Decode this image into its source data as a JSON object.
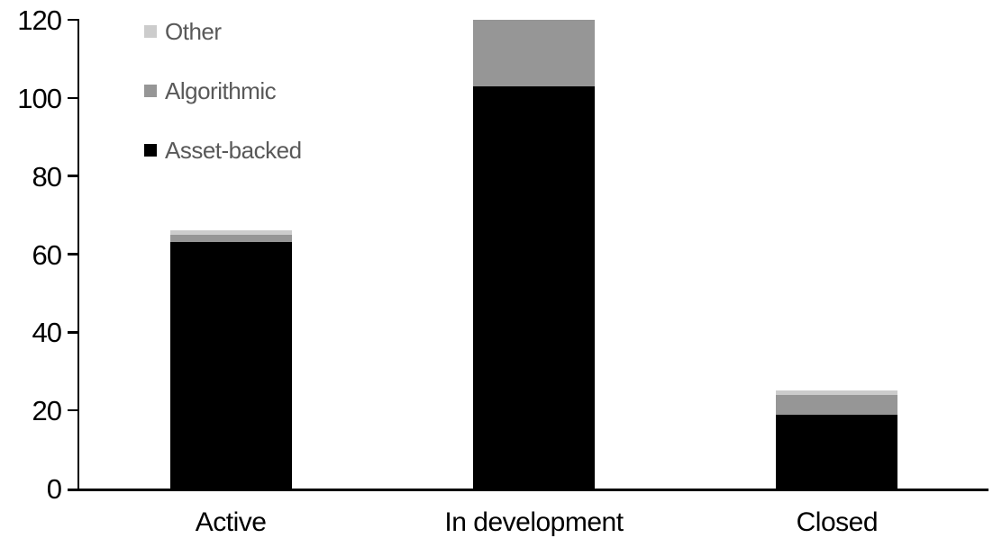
{
  "chart_data": {
    "type": "bar",
    "stacked": true,
    "title": "",
    "xlabel": "",
    "ylabel": "",
    "categories": [
      "Active",
      "In development",
      "Closed"
    ],
    "series": [
      {
        "name": "Asset-backed",
        "color": "#000000",
        "values": [
          63,
          103,
          19
        ]
      },
      {
        "name": "Algorithmic",
        "color": "#969696",
        "values": [
          2,
          17,
          5
        ]
      },
      {
        "name": "Other",
        "color": "#cccccc",
        "values": [
          1,
          0,
          1
        ]
      }
    ],
    "stack_totals": [
      66,
      120,
      25
    ],
    "ylim": [
      0,
      120
    ],
    "yticks": [
      0,
      20,
      40,
      60,
      80,
      100,
      120
    ],
    "grid": false,
    "legend_position": "top-left",
    "legend_order": [
      "Other",
      "Algorithmic",
      "Asset-backed"
    ],
    "colors": {
      "axis": "#000000",
      "tick_label_text": "#000000",
      "category_label_text": "#000000",
      "legend_text": "#595959",
      "background": "#ffffff"
    }
  }
}
